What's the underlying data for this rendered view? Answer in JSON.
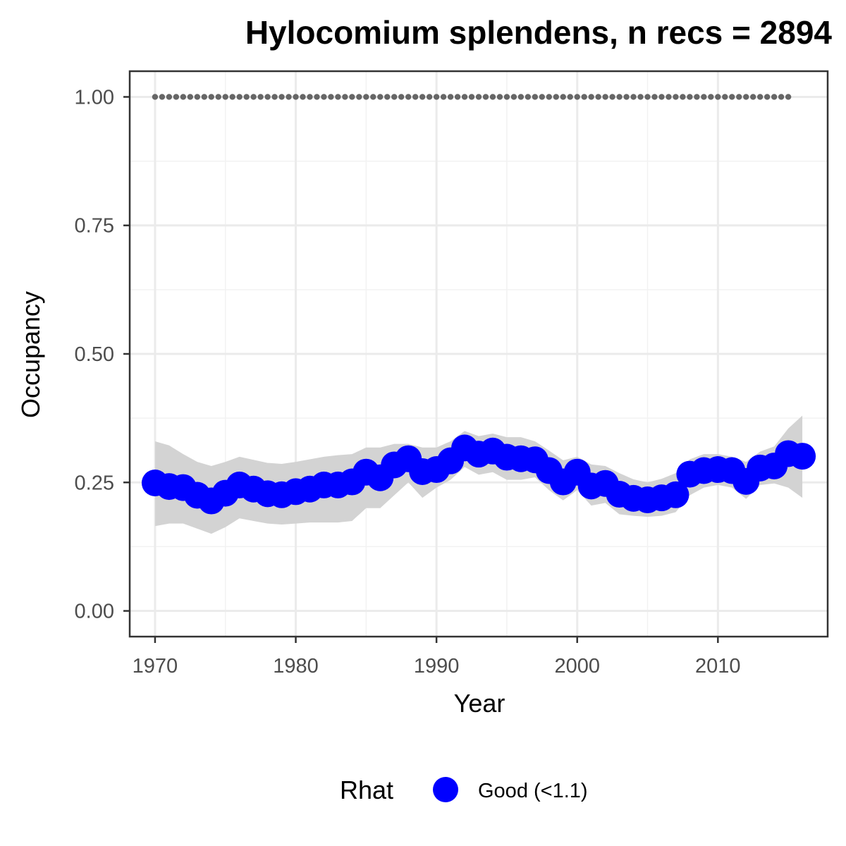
{
  "chart_data": {
    "type": "line",
    "title": "Hylocomium splendens, n recs = 2894",
    "xlabel": "Year",
    "ylabel": "Occupancy",
    "xlim": [
      1968.2,
      2017.8
    ],
    "ylim": [
      -0.05,
      1.05
    ],
    "x_ticks": [
      1970,
      1980,
      1990,
      2000,
      2010
    ],
    "x_tick_labels": [
      "1970",
      "1980",
      "1990",
      "2000",
      "2010"
    ],
    "y_ticks": [
      0,
      0.25,
      0.5,
      0.75,
      1
    ],
    "y_tick_labels": [
      "0.00",
      "0.25",
      "0.50",
      "0.75",
      "1.00"
    ],
    "grid": true,
    "x": [
      1970,
      1971,
      1972,
      1973,
      1974,
      1975,
      1976,
      1977,
      1978,
      1979,
      1980,
      1981,
      1982,
      1983,
      1984,
      1985,
      1986,
      1987,
      1988,
      1989,
      1990,
      1991,
      1992,
      1993,
      1994,
      1995,
      1996,
      1997,
      1998,
      1999,
      2000,
      2001,
      2002,
      2003,
      2004,
      2005,
      2006,
      2007,
      2008,
      2009,
      2010,
      2011,
      2012,
      2013,
      2014,
      2015,
      2016
    ],
    "series": [
      {
        "name": "Good (<1.1)",
        "color": "#0000ff",
        "values": [
          0.249,
          0.242,
          0.24,
          0.225,
          0.214,
          0.229,
          0.245,
          0.237,
          0.228,
          0.226,
          0.232,
          0.237,
          0.245,
          0.245,
          0.251,
          0.27,
          0.259,
          0.284,
          0.296,
          0.271,
          0.275,
          0.292,
          0.317,
          0.305,
          0.311,
          0.299,
          0.296,
          0.294,
          0.273,
          0.251,
          0.27,
          0.243,
          0.248,
          0.227,
          0.219,
          0.216,
          0.22,
          0.226,
          0.266,
          0.273,
          0.275,
          0.273,
          0.252,
          0.278,
          0.282,
          0.306,
          0.301
        ],
        "lower": [
          0.165,
          0.17,
          0.17,
          0.16,
          0.15,
          0.163,
          0.18,
          0.175,
          0.17,
          0.168,
          0.17,
          0.172,
          0.172,
          0.172,
          0.175,
          0.2,
          0.2,
          0.225,
          0.25,
          0.22,
          0.24,
          0.255,
          0.28,
          0.265,
          0.27,
          0.255,
          0.255,
          0.26,
          0.235,
          0.215,
          0.235,
          0.205,
          0.21,
          0.188,
          0.185,
          0.183,
          0.185,
          0.192,
          0.225,
          0.24,
          0.245,
          0.24,
          0.218,
          0.245,
          0.248,
          0.24,
          0.22
        ],
        "upper": [
          0.33,
          0.322,
          0.305,
          0.29,
          0.282,
          0.29,
          0.3,
          0.294,
          0.288,
          0.286,
          0.29,
          0.295,
          0.3,
          0.303,
          0.305,
          0.318,
          0.318,
          0.325,
          0.325,
          0.318,
          0.318,
          0.33,
          0.35,
          0.34,
          0.345,
          0.338,
          0.338,
          0.33,
          0.312,
          0.293,
          0.3,
          0.285,
          0.282,
          0.268,
          0.256,
          0.25,
          0.257,
          0.268,
          0.295,
          0.305,
          0.305,
          0.3,
          0.29,
          0.31,
          0.32,
          0.355,
          0.38
        ]
      }
    ],
    "reference_line": {
      "y": 1,
      "x_start": 1970,
      "x_end": 2015,
      "style": "dotted",
      "color": "#666666"
    },
    "band_color": "#d3d3d3",
    "legend": {
      "title": "Rhat",
      "placement": "bottom",
      "entries": [
        "Good (<1.1)"
      ]
    }
  }
}
